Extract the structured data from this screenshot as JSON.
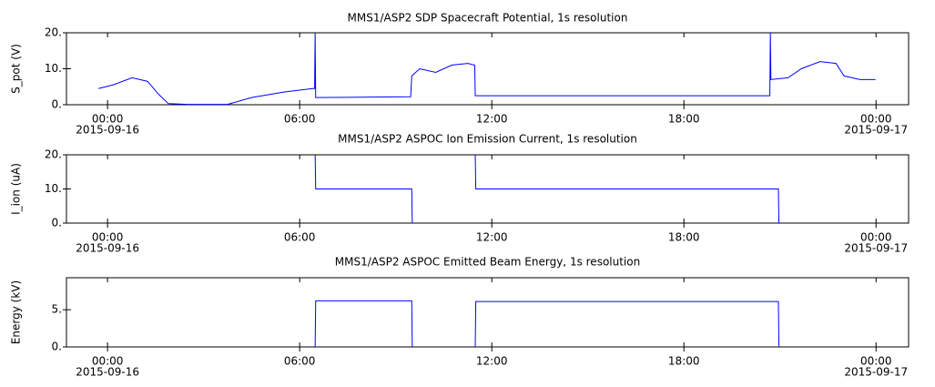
{
  "chart_data": [
    {
      "type": "line",
      "title": "MMS1/ASP2  SDP Spacecraft Potential, 1s resolution",
      "ylabel": "S_pot (V)",
      "xlim": [
        "2015-09-15T22:43",
        "2015-09-17T01:01"
      ],
      "xticks": [
        {
          "value": "2015-09-16T00:00",
          "label": [
            "00:00",
            "2015-09-16"
          ]
        },
        {
          "value": "2015-09-16T06:00",
          "label": [
            "06:00"
          ]
        },
        {
          "value": "2015-09-16T12:00",
          "label": [
            "12:00"
          ]
        },
        {
          "value": "2015-09-16T18:00",
          "label": [
            "18:00"
          ]
        },
        {
          "value": "2015-09-17T00:00",
          "label": [
            "00:00",
            "2015-09-17"
          ]
        }
      ],
      "ylim": [
        0,
        20
      ],
      "yticks": [
        {
          "value": 0,
          "label": "0."
        },
        {
          "value": 10,
          "label": "10."
        },
        {
          "value": 20,
          "label": "20."
        }
      ],
      "series": [
        {
          "color": "#0000ff",
          "x": [
            "2015-09-15T23:43",
            "2015-09-16T00:10",
            "2015-09-16T00:46",
            "2015-09-16T01:15",
            "2015-09-16T01:35",
            "2015-09-16T01:54",
            "2015-09-16T02:30",
            "2015-09-16T03:45",
            "2015-09-16T04:30",
            "2015-09-16T05:30",
            "2015-09-16T06:24",
            "2015-09-16T06:28",
            "2015-09-16T06:29",
            "2015-09-16T06:30",
            "2015-09-16T09:28",
            "2015-09-16T09:30",
            "2015-09-16T09:45",
            "2015-09-16T10:15",
            "2015-09-16T10:45",
            "2015-09-16T11:15",
            "2015-09-16T11:28",
            "2015-09-16T11:29",
            "2015-09-16T20:41",
            "2015-09-16T20:42",
            "2015-09-16T20:43",
            "2015-09-16T21:15",
            "2015-09-16T21:40",
            "2015-09-16T22:15",
            "2015-09-16T22:45",
            "2015-09-16T23:00",
            "2015-09-16T23:30",
            "2015-09-16T23:59"
          ],
          "values": [
            4.5,
            5.5,
            7.5,
            6.5,
            3,
            0.3,
            0.1,
            0.1,
            2,
            3.5,
            4.5,
            4.5,
            20,
            2,
            2.2,
            8,
            10,
            9,
            11,
            11.5,
            11,
            2.5,
            2.5,
            20,
            7,
            7.5,
            10,
            12,
            11.5,
            8,
            7,
            7
          ]
        }
      ]
    },
    {
      "type": "line",
      "title": "MMS1/ASP2  ASPOC Ion Emission Current, 1s resolution",
      "ylabel": "I_ion (uA)",
      "xlim": [
        "2015-09-15T22:43",
        "2015-09-17T01:01"
      ],
      "xticks": [
        {
          "value": "2015-09-16T00:00",
          "label": [
            "00:00",
            "2015-09-16"
          ]
        },
        {
          "value": "2015-09-16T06:00",
          "label": [
            "06:00"
          ]
        },
        {
          "value": "2015-09-16T12:00",
          "label": [
            "12:00"
          ]
        },
        {
          "value": "2015-09-16T18:00",
          "label": [
            "18:00"
          ]
        },
        {
          "value": "2015-09-17T00:00",
          "label": [
            "00:00",
            "2015-09-17"
          ]
        }
      ],
      "ylim": [
        0,
        20
      ],
      "yticks": [
        {
          "value": 0,
          "label": "0."
        },
        {
          "value": 10,
          "label": "10."
        },
        {
          "value": 20,
          "label": "20."
        }
      ],
      "series": [
        {
          "color": "#0000ff",
          "x": [
            "2015-09-16T06:29",
            "2015-09-16T06:30",
            "2015-09-16T09:30",
            "2015-09-16T09:31",
            "2015-09-16T09:32",
            "2015-09-16T11:29",
            "2015-09-16T11:30",
            "2015-09-16T20:57",
            "2015-09-16T20:58"
          ],
          "values": [
            20,
            10,
            10,
            0,
            null,
            20,
            10,
            10,
            0
          ]
        }
      ]
    },
    {
      "type": "line",
      "title": "MMS1/ASP2  ASPOC Emitted Beam Energy, 1s resolution",
      "ylabel": "Energy (kV)",
      "xlim": [
        "2015-09-15T22:43",
        "2015-09-17T01:01"
      ],
      "xticks": [
        {
          "value": "2015-09-16T00:00",
          "label": [
            "00:00",
            "2015-09-16"
          ]
        },
        {
          "value": "2015-09-16T06:00",
          "label": [
            "06:00"
          ]
        },
        {
          "value": "2015-09-16T12:00",
          "label": [
            "12:00"
          ]
        },
        {
          "value": "2015-09-16T18:00",
          "label": [
            "18:00"
          ]
        },
        {
          "value": "2015-09-17T00:00",
          "label": [
            "00:00",
            "2015-09-17"
          ]
        }
      ],
      "ylim": [
        0,
        9.3
      ],
      "yticks": [
        {
          "value": 0,
          "label": "0."
        },
        {
          "value": 5,
          "label": "5."
        }
      ],
      "series": [
        {
          "color": "#0000ff",
          "x": [
            "2015-09-16T06:29",
            "2015-09-16T06:30",
            "2015-09-16T09:30",
            "2015-09-16T09:31",
            "2015-09-16T09:32",
            "2015-09-16T11:29",
            "2015-09-16T11:30",
            "2015-09-16T20:57",
            "2015-09-16T20:58"
          ],
          "values": [
            0,
            6.2,
            6.2,
            0,
            null,
            0,
            6.1,
            6.1,
            0
          ]
        }
      ]
    }
  ]
}
